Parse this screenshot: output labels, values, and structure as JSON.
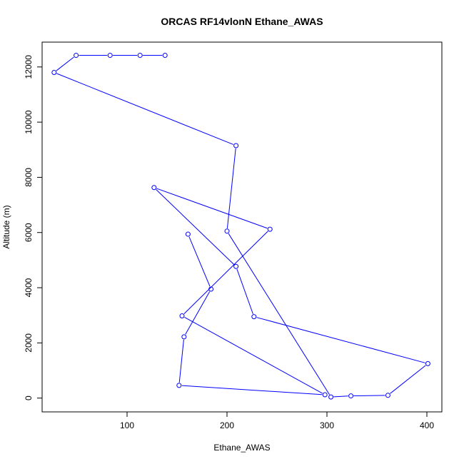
{
  "chart_data": {
    "type": "line",
    "title": "ORCAS RF14vlonN Ethane_AWAS",
    "xlabel": "Ethane_AWAS",
    "ylabel": "Altitude (m)",
    "xlim": [
      15,
      415
    ],
    "ylim": [
      -500,
      12900
    ],
    "x_ticks": [
      100,
      200,
      300,
      400
    ],
    "y_ticks": [
      0,
      2000,
      4000,
      6000,
      8000,
      10000,
      12000
    ],
    "grid": false,
    "series_color": "#0000ff",
    "markers": "open-circle",
    "points": [
      {
        "x": 138,
        "y": 12420
      },
      {
        "x": 113,
        "y": 12420
      },
      {
        "x": 83,
        "y": 12420
      },
      {
        "x": 49,
        "y": 12420
      },
      {
        "x": 27,
        "y": 11800
      },
      {
        "x": 209,
        "y": 9150
      },
      {
        "x": 200,
        "y": 6050
      },
      {
        "x": 304,
        "y": 40
      },
      {
        "x": 324,
        "y": 80
      },
      {
        "x": 361,
        "y": 100
      },
      {
        "x": 401,
        "y": 1250
      },
      {
        "x": 227,
        "y": 2950
      },
      {
        "x": 209,
        "y": 4770
      },
      {
        "x": 127,
        "y": 7630
      },
      {
        "x": 243,
        "y": 6120
      },
      {
        "x": 155,
        "y": 2980
      },
      {
        "x": 298,
        "y": 120
      },
      {
        "x": 152,
        "y": 460
      },
      {
        "x": 157,
        "y": 2220
      },
      {
        "x": 184,
        "y": 3950
      },
      {
        "x": 161,
        "y": 5940
      }
    ]
  }
}
